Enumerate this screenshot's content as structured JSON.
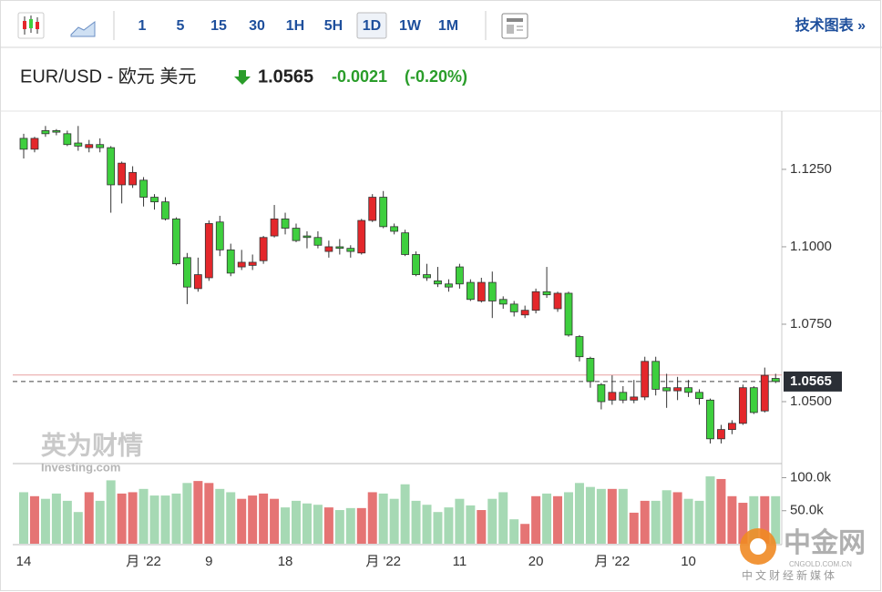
{
  "toolbar": {
    "intervals": [
      "1",
      "5",
      "15",
      "30",
      "1H",
      "5H",
      "1D",
      "1W",
      "1M"
    ],
    "selected": "1D",
    "link": "技术图表 »"
  },
  "header": {
    "symbol": "EUR/USD - 欧元 美元",
    "price": "1.0565",
    "change": "-0.0021",
    "change_percent": "(-0.20%)"
  },
  "watermarks": {
    "brand": "英为财情",
    "site": "Investing.com",
    "logo": "中金网",
    "logo_url": "CNGOLD.COM.CN",
    "logo_tagline": "中文财经新媒体"
  },
  "chart_data": {
    "type": "candlestick",
    "categories": [
      "14",
      null,
      null,
      null,
      null,
      null,
      null,
      null,
      null,
      null,
      null,
      "月 '22",
      null,
      null,
      null,
      null,
      null,
      "9",
      null,
      null,
      null,
      null,
      null,
      null,
      "18",
      null,
      null,
      null,
      null,
      null,
      null,
      null,
      null,
      "月 '22",
      null,
      null,
      null,
      null,
      null,
      null,
      "11",
      null,
      null,
      null,
      null,
      null,
      null,
      "20",
      null,
      null,
      null,
      null,
      null,
      null,
      "月 '22",
      null,
      null,
      null,
      null,
      null,
      null,
      "10",
      null,
      null,
      null,
      null,
      null,
      null,
      null,
      null
    ],
    "open": [
      1.135,
      1.1315,
      1.1375,
      1.1375,
      1.1365,
      1.1335,
      1.132,
      1.133,
      1.132,
      1.12,
      1.12,
      1.1215,
      1.116,
      1.1145,
      1.109,
      1.0965,
      1.0865,
      1.09,
      1.108,
      1.099,
      1.0935,
      1.094,
      1.0955,
      1.1035,
      1.109,
      1.106,
      1.1035,
      1.103,
      1.0985,
      1.1,
      1.0995,
      1.098,
      1.1085,
      1.116,
      1.1065,
      1.1045,
      1.0975,
      1.091,
      1.089,
      1.088,
      1.0935,
      1.0885,
      1.0825,
      1.0885,
      1.083,
      1.0815,
      1.078,
      1.0795,
      1.0855,
      1.08,
      1.085,
      1.071,
      1.064,
      1.0555,
      1.0505,
      1.053,
      1.0505,
      1.0515,
      1.063,
      1.0545,
      1.0535,
      1.0545,
      1.053,
      1.0505,
      1.038,
      1.041,
      1.043,
      1.0545,
      1.047,
      1.0575
    ],
    "high": [
      1.1365,
      1.1355,
      1.139,
      1.138,
      1.1375,
      1.139,
      1.1345,
      1.135,
      1.1325,
      1.1275,
      1.126,
      1.1225,
      1.117,
      1.116,
      1.1095,
      1.098,
      1.0965,
      1.1085,
      1.11,
      1.101,
      1.099,
      1.0975,
      1.1035,
      1.1135,
      1.111,
      1.1075,
      1.105,
      1.105,
      1.102,
      1.1025,
      1.1005,
      1.109,
      1.117,
      1.118,
      1.1075,
      1.1055,
      1.0985,
      1.0945,
      1.0935,
      1.0895,
      1.0945,
      1.0895,
      1.09,
      1.092,
      1.084,
      1.0825,
      1.081,
      1.0865,
      1.0935,
      1.0855,
      1.0855,
      1.0715,
      1.0645,
      1.056,
      1.0585,
      1.055,
      1.057,
      1.0645,
      1.0645,
      1.059,
      1.058,
      1.057,
      1.054,
      1.051,
      1.0425,
      1.044,
      1.0555,
      1.055,
      1.061,
      1.059
    ],
    "low": [
      1.1285,
      1.1305,
      1.1355,
      1.136,
      1.1325,
      1.131,
      1.1305,
      1.1305,
      1.111,
      1.114,
      1.119,
      1.113,
      1.112,
      1.1085,
      1.094,
      1.0815,
      1.0855,
      1.089,
      1.097,
      1.0905,
      1.0925,
      1.0925,
      1.0945,
      1.103,
      1.104,
      1.1015,
      1.0995,
      1.0995,
      1.0965,
      1.0975,
      1.0965,
      1.0975,
      1.108,
      1.106,
      1.104,
      1.097,
      1.0905,
      1.089,
      1.087,
      1.0855,
      1.0865,
      1.0825,
      1.082,
      1.077,
      1.08,
      1.0775,
      1.077,
      1.0785,
      1.0835,
      1.079,
      1.071,
      1.063,
      1.0545,
      1.0475,
      1.049,
      1.0495,
      1.0495,
      1.0505,
      1.052,
      1.048,
      1.0505,
      1.0515,
      1.049,
      1.0365,
      1.0365,
      1.0395,
      1.0425,
      1.046,
      1.0465,
      1.056
    ],
    "close": [
      1.1315,
      1.135,
      1.1365,
      1.137,
      1.133,
      1.1325,
      1.133,
      1.132,
      1.12,
      1.127,
      1.124,
      1.116,
      1.1145,
      1.109,
      1.0945,
      1.087,
      1.091,
      1.1075,
      1.099,
      1.0915,
      1.095,
      1.095,
      1.103,
      1.109,
      1.106,
      1.102,
      1.103,
      1.1005,
      1.1,
      1.0995,
      1.0985,
      1.1085,
      1.116,
      1.1065,
      1.105,
      1.0975,
      1.091,
      1.09,
      1.088,
      1.087,
      1.088,
      1.083,
      1.0885,
      1.0825,
      1.0815,
      1.079,
      1.0795,
      1.0855,
      1.0845,
      1.085,
      1.0715,
      1.0645,
      1.0565,
      1.05,
      1.053,
      1.0505,
      1.0515,
      1.063,
      1.054,
      1.0535,
      1.0545,
      1.053,
      1.051,
      1.038,
      1.041,
      1.043,
      1.0545,
      1.0465,
      1.0585,
      1.0565
    ],
    "volume": [
      78000,
      72000,
      68000,
      76000,
      65000,
      48000,
      78000,
      65000,
      96000,
      76000,
      78000,
      83000,
      73000,
      73000,
      76000,
      92000,
      95000,
      92000,
      83000,
      78000,
      68000,
      73000,
      76000,
      68000,
      55000,
      65000,
      61000,
      59000,
      55000,
      51000,
      54000,
      54000,
      78000,
      76000,
      68000,
      90000,
      65000,
      59000,
      48000,
      55000,
      68000,
      58000,
      51000,
      68000,
      78000,
      37000,
      30000,
      72000,
      76000,
      72000,
      78000,
      92000,
      86000,
      83000,
      83000,
      83000,
      47000,
      65000,
      65000,
      81000,
      78000,
      68000,
      65000,
      102000,
      98000,
      72000,
      62000,
      72000,
      72000,
      72000
    ],
    "up_color": "#e4272b",
    "down_color": "#3ecf3e",
    "volume_up_color": "#e57474",
    "volume_down_color": "#a6d9b4",
    "ylim": [
      1.0303,
      1.1438
    ],
    "yticks": [
      {
        "value": 1.05,
        "label": "1.0500"
      },
      {
        "value": 1.075,
        "label": "1.0750"
      },
      {
        "value": 1.1,
        "label": "1.1000"
      },
      {
        "value": 1.125,
        "label": "1.1250"
      }
    ],
    "vlim": [
      0,
      120000
    ],
    "vticks": [
      {
        "value": 50000,
        "label": "50.0k"
      },
      {
        "value": 100000,
        "label": "100.0k"
      }
    ],
    "previous_close": 1.0586,
    "last_price": {
      "value": 1.0565,
      "label": "1.0565"
    }
  }
}
